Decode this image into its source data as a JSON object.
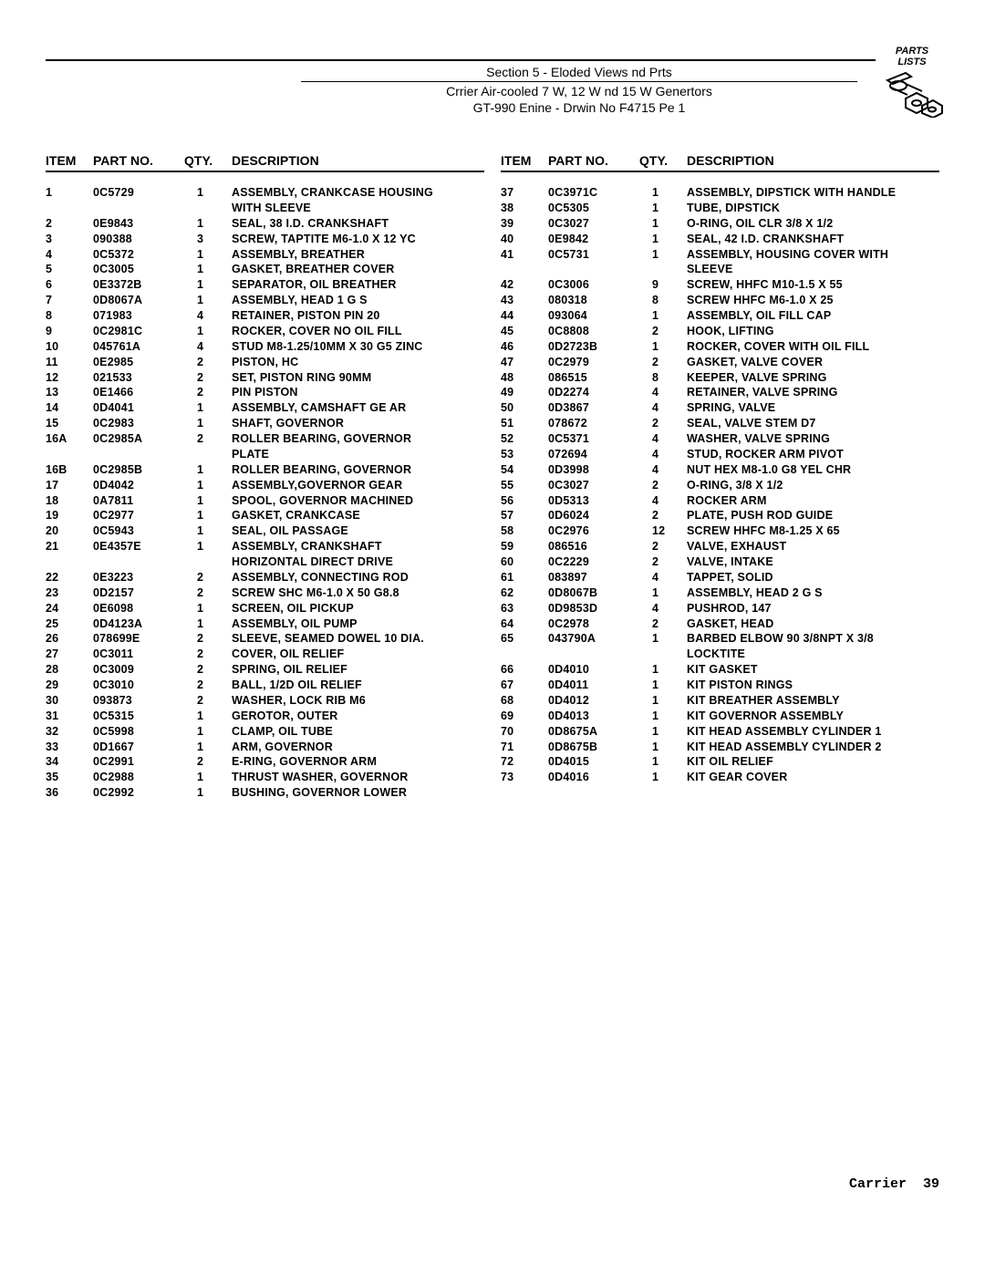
{
  "header": {
    "section_line": "Section 5 - Eloded Views nd Prts",
    "sub1": "Crrier Air-cooled 7 W, 12 W nd 15 W Genertors",
    "sub2": "GT-990 Enine - Drwin No F4715 Pe 1"
  },
  "badge": {
    "line1": "PARTS",
    "line2": "LISTS"
  },
  "columns": {
    "headers": {
      "item": "ITEM",
      "part": "PART NO.",
      "qty": "QTY.",
      "desc": "DESCRIPTION"
    }
  },
  "left_rows": [
    {
      "item": "1",
      "part": "0C5729",
      "qty": "1",
      "desc": "ASSEMBLY, CRANKCASE HOUSING"
    },
    {
      "item": "",
      "part": "",
      "qty": "",
      "desc": "WITH SLEEVE"
    },
    {
      "item": "2",
      "part": "0E9843",
      "qty": "1",
      "desc": "SEAL, 38 I.D. CRANKSHAFT"
    },
    {
      "item": "3",
      "part": "090388",
      "qty": "3",
      "desc": "SCREW, TAPTITE M6-1.0 X 12 YC"
    },
    {
      "item": "4",
      "part": "0C5372",
      "qty": "1",
      "desc": "ASSEMBLY, BREATHER"
    },
    {
      "item": "5",
      "part": "0C3005",
      "qty": "1",
      "desc": "GASKET, BREATHER COVER"
    },
    {
      "item": "6",
      "part": "0E3372B",
      "qty": "1",
      "desc": "SEPARATOR, OIL BREATHER"
    },
    {
      "item": "7",
      "part": "0D8067A",
      "qty": "1",
      "desc": "ASSEMBLY, HEAD 1 G   S"
    },
    {
      "item": "8",
      "part": "071983",
      "qty": "4",
      "desc": "RETAINER, PISTON PIN 20"
    },
    {
      "item": "9",
      "part": "0C2981C",
      "qty": "1",
      "desc": "ROCKER, COVER NO OIL FILL"
    },
    {
      "item": "10",
      "part": "045761A",
      "qty": "4",
      "desc": "STUD M8-1.25/10MM X 30 G5 ZINC"
    },
    {
      "item": "11",
      "part": "0E2985",
      "qty": "2",
      "desc": "PISTON, HC"
    },
    {
      "item": "12",
      "part": "021533",
      "qty": "2",
      "desc": "SET, PISTON RING 90MM"
    },
    {
      "item": "13",
      "part": "0E1466",
      "qty": "2",
      "desc": "PIN PISTON"
    },
    {
      "item": "14",
      "part": "0D4041",
      "qty": "1",
      "desc": "ASSEMBLY, CAMSHAFT GE   AR"
    },
    {
      "item": "15",
      "part": "0C2983",
      "qty": "1",
      "desc": "SHAFT, GOVERNOR"
    },
    {
      "item": "16A",
      "part": "0C2985A",
      "qty": "2",
      "desc": "ROLLER BEARING, GOVERNOR"
    },
    {
      "item": "",
      "part": "",
      "qty": "",
      "desc": "PLATE"
    },
    {
      "item": "16B",
      "part": "0C2985B",
      "qty": "1",
      "desc": "ROLLER BEARING, GOVERNOR"
    },
    {
      "item": "17",
      "part": "0D4042",
      "qty": "1",
      "desc": "ASSEMBLY,GOVERNOR GEAR"
    },
    {
      "item": "18",
      "part": "0A7811",
      "qty": "1",
      "desc": "SPOOL, GOVERNOR MACHINED"
    },
    {
      "item": "19",
      "part": "0C2977",
      "qty": "1",
      "desc": "GASKET, CRANKCASE"
    },
    {
      "item": "20",
      "part": "0C5943",
      "qty": "1",
      "desc": "SEAL, OIL PASSAGE"
    },
    {
      "item": "21",
      "part": "0E4357E",
      "qty": "1",
      "desc": "ASSEMBLY, CRANKSHAFT"
    },
    {
      "item": "",
      "part": "",
      "qty": "",
      "desc": "HORIZONTAL DIRECT DRIVE"
    },
    {
      "item": "22",
      "part": "0E3223",
      "qty": "2",
      "desc": "ASSEMBLY, CONNECTING ROD"
    },
    {
      "item": "23",
      "part": "0D2157",
      "qty": "2",
      "desc": "SCREW SHC M6-1.0 X 50 G8.8"
    },
    {
      "item": "24",
      "part": "0E6098",
      "qty": "1",
      "desc": "SCREEN, OIL PICKUP"
    },
    {
      "item": "25",
      "part": "0D4123A",
      "qty": "1",
      "desc": "ASSEMBLY, OIL PUMP"
    },
    {
      "item": "26",
      "part": "078699E",
      "qty": "2",
      "desc": "SLEEVE, SEAMED DOWEL 10 DIA."
    },
    {
      "item": "27",
      "part": "0C3011",
      "qty": "2",
      "desc": "COVER, OIL RELIEF"
    },
    {
      "item": "28",
      "part": "0C3009",
      "qty": "2",
      "desc": "SPRING, OIL RELIEF"
    },
    {
      "item": "29",
      "part": "0C3010",
      "qty": "2",
      "desc": "BALL, 1/2D OIL RELIEF"
    },
    {
      "item": "30",
      "part": "093873",
      "qty": "2",
      "desc": "WASHER, LOCK RIB M6"
    },
    {
      "item": "31",
      "part": "0C5315",
      "qty": "1",
      "desc": "GEROTOR, OUTER"
    },
    {
      "item": "32",
      "part": "0C5998",
      "qty": "1",
      "desc": "CLAMP, OIL TUBE"
    },
    {
      "item": "33",
      "part": "0D1667",
      "qty": "1",
      "desc": "ARM, GOVERNOR"
    },
    {
      "item": "34",
      "part": "0C2991",
      "qty": "2",
      "desc": "E-RING, GOVERNOR ARM"
    },
    {
      "item": "35",
      "part": "0C2988",
      "qty": "1",
      "desc": "THRUST WASHER, GOVERNOR"
    },
    {
      "item": "36",
      "part": "0C2992",
      "qty": "1",
      "desc": "BUSHING, GOVERNOR LOWER"
    }
  ],
  "right_rows": [
    {
      "item": "37",
      "part": "0C3971C",
      "qty": "1",
      "desc": "ASSEMBLY, DIPSTICK WITH HANDLE"
    },
    {
      "item": "38",
      "part": "0C5305",
      "qty": "1",
      "desc": "TUBE, DIPSTICK"
    },
    {
      "item": "39",
      "part": "0C3027",
      "qty": "1",
      "desc": "O-RING, OIL CLR 3/8 X 1/2"
    },
    {
      "item": "40",
      "part": "0E9842",
      "qty": "1",
      "desc": "SEAL, 42 I.D. CRANKSHAFT"
    },
    {
      "item": "41",
      "part": "0C5731",
      "qty": "1",
      "desc": "ASSEMBLY, HOUSING COVER WITH"
    },
    {
      "item": "",
      "part": "",
      "qty": "",
      "desc": "SLEEVE"
    },
    {
      "item": "42",
      "part": "0C3006",
      "qty": "9",
      "desc": "SCREW, HHFC M10-1.5 X 55"
    },
    {
      "item": "43",
      "part": "080318",
      "qty": "8",
      "desc": "SCREW HHFC M6-1.0 X 25"
    },
    {
      "item": "44",
      "part": "093064",
      "qty": "1",
      "desc": "ASSEMBLY, OIL FILL CAP"
    },
    {
      "item": "45",
      "part": "0C8808",
      "qty": "2",
      "desc": "HOOK, LIFTING"
    },
    {
      "item": "46",
      "part": "0D2723B",
      "qty": "1",
      "desc": "ROCKER, COVER WITH OIL FILL"
    },
    {
      "item": "47",
      "part": "0C2979",
      "qty": "2",
      "desc": "GASKET, VALVE COVER"
    },
    {
      "item": "48",
      "part": "086515",
      "qty": "8",
      "desc": "KEEPER, VALVE SPRING"
    },
    {
      "item": "49",
      "part": "0D2274",
      "qty": "4",
      "desc": "RETAINER, VALVE SPRING"
    },
    {
      "item": "50",
      "part": "0D3867",
      "qty": "4",
      "desc": "SPRING, VALVE"
    },
    {
      "item": "51",
      "part": "078672",
      "qty": "2",
      "desc": "SEAL, VALVE STEM D7"
    },
    {
      "item": "52",
      "part": "0C5371",
      "qty": "4",
      "desc": "WASHER, VALVE SPRING"
    },
    {
      "item": "53",
      "part": "072694",
      "qty": "4",
      "desc": "STUD, ROCKER ARM PIVOT"
    },
    {
      "item": "54",
      "part": "0D3998",
      "qty": "4",
      "desc": "NUT HEX M8-1.0 G8 YEL CHR"
    },
    {
      "item": "55",
      "part": "0C3027",
      "qty": "2",
      "desc": "O-RING, 3/8 X 1/2"
    },
    {
      "item": "56",
      "part": "0D5313",
      "qty": "4",
      "desc": "ROCKER ARM"
    },
    {
      "item": "57",
      "part": "0D6024",
      "qty": "2",
      "desc": "PLATE, PUSH ROD GUIDE"
    },
    {
      "item": "58",
      "part": "0C2976",
      "qty": "12",
      "desc": "SCREW HHFC M8-1.25 X 65"
    },
    {
      "item": "59",
      "part": "086516",
      "qty": "2",
      "desc": "VALVE, EXHAUST"
    },
    {
      "item": "60",
      "part": "0C2229",
      "qty": "2",
      "desc": "VALVE, INTAKE"
    },
    {
      "item": "61",
      "part": "083897",
      "qty": "4",
      "desc": "TAPPET, SOLID"
    },
    {
      "item": "62",
      "part": "0D8067B",
      "qty": "1",
      "desc": "ASSEMBLY, HEAD 2 G   S"
    },
    {
      "item": "63",
      "part": "0D9853D",
      "qty": "4",
      "desc": "PUSHROD, 147"
    },
    {
      "item": "64",
      "part": "0C2978",
      "qty": "2",
      "desc": "GASKET, HEAD"
    },
    {
      "item": "65",
      "part": "043790A",
      "qty": "1",
      "desc": "BARBED ELBOW 90 3/8NPT X 3/8"
    },
    {
      "item": "",
      "part": "",
      "qty": "",
      "desc": "LOCKTITE"
    },
    {
      "item": "66",
      "part": "0D4010",
      "qty": "1",
      "desc": "KIT GASKET"
    },
    {
      "item": "67",
      "part": "0D4011",
      "qty": "1",
      "desc": "KIT PISTON   RINGS"
    },
    {
      "item": "68",
      "part": "0D4012",
      "qty": "1",
      "desc": "KIT BREATHER ASSEMBLY"
    },
    {
      "item": "69",
      "part": "0D4013",
      "qty": "1",
      "desc": "KIT GOVERNOR ASSEMBLY"
    },
    {
      "item": "70",
      "part": "0D8675A",
      "qty": "1",
      "desc": "KIT HEAD ASSEMBLY CYLINDER 1"
    },
    {
      "item": "71",
      "part": "0D8675B",
      "qty": "1",
      "desc": "KIT HEAD ASSEMBLY CYLINDER 2"
    },
    {
      "item": "72",
      "part": "0D4015",
      "qty": "1",
      "desc": "KIT OIL RELIEF"
    },
    {
      "item": "73",
      "part": "0D4016",
      "qty": "1",
      "desc": "KIT GEAR COVER"
    }
  ],
  "footer": {
    "brand": "Carrier",
    "page": "39"
  }
}
